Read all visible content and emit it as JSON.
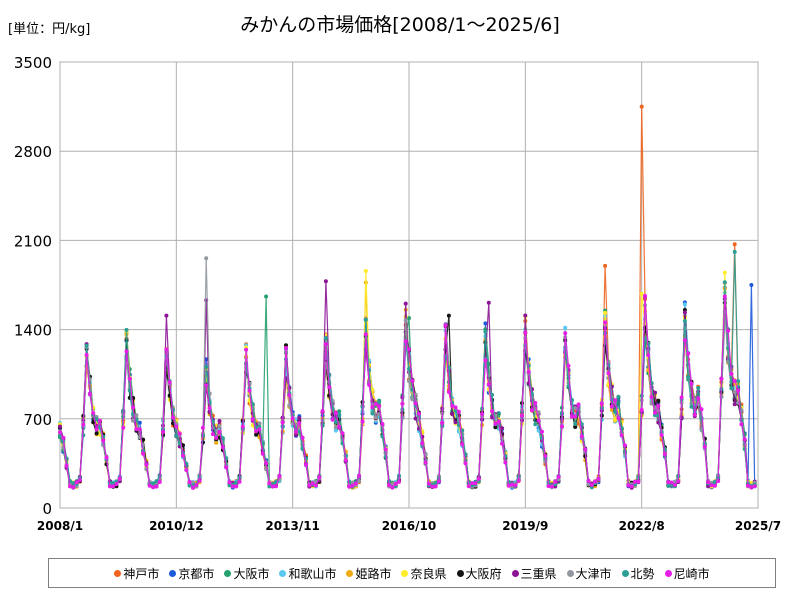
{
  "unit_label": "[単位：円/kg]",
  "chart_data": {
    "type": "line",
    "title": "みかんの市場価格[2008/1〜2025/6]",
    "xlabel": "",
    "ylabel": "",
    "x_range": [
      "2008/1",
      "2025/7"
    ],
    "ylim": [
      0,
      3500
    ],
    "y_ticks": [
      0,
      700,
      1400,
      2100,
      2800,
      3500
    ],
    "x_ticks": [
      "2008/1",
      "2010/12",
      "2013/11",
      "2016/10",
      "2019/9",
      "2022/8",
      "2025/7"
    ],
    "grid": true,
    "legend_position": "bottom",
    "seasonal_pattern_note": "",
    "base_profile": {
      "description": "",
      "season_peaks": [
        {
          "season_start": "2008/1",
          "peak": 1180
        },
        {
          "season_start": "2009/1",
          "peak": 1250
        },
        {
          "season_start": "2010/1",
          "peak": 1150
        },
        {
          "season_start": "2011/1",
          "peak": 1050
        },
        {
          "season_start": "2012/1",
          "peak": 1180
        },
        {
          "season_start": "2013/1",
          "peak": 1150
        },
        {
          "season_start": "2014/1",
          "peak": 1250
        },
        {
          "season_start": "2015/1",
          "peak": 1350
        },
        {
          "season_start": "2016/1",
          "peak": 1450
        },
        {
          "season_start": "2017/1",
          "peak": 1300
        },
        {
          "season_start": "2018/1",
          "peak": 1300
        },
        {
          "season_start": "2019/1",
          "peak": 1350
        },
        {
          "season_start": "2020/1",
          "peak": 1300
        },
        {
          "season_start": "2021/1",
          "peak": 1400
        },
        {
          "season_start": "2022/1",
          "peak": 1500
        },
        {
          "season_start": "2023/1",
          "peak": 1450
        },
        {
          "season_start": "2024/1",
          "peak": 1650
        },
        {
          "season_start": "2025/1",
          "peak": 1750
        }
      ]
    },
    "series": [
      {
        "name": "神戸市",
        "color": "#f0641e",
        "spikes": [
          {
            "date": "2022/8",
            "value": 3150
          },
          {
            "date": "2021/9",
            "value": 1900
          },
          {
            "date": "2024/12",
            "value": 2070
          }
        ]
      },
      {
        "name": "京都市",
        "color": "#1e5adc",
        "spikes": [
          {
            "date": "2008/9",
            "value": 1270
          },
          {
            "date": "2025/5",
            "value": 1750
          }
        ]
      },
      {
        "name": "大阪市",
        "color": "#23a06e",
        "spikes": [
          {
            "date": "2013/3",
            "value": 1660
          },
          {
            "date": "2016/10",
            "value": 1490
          }
        ]
      },
      {
        "name": "和歌山市",
        "color": "#5ac8f0",
        "spikes": [
          {
            "date": "2016/9",
            "value": 1340
          }
        ]
      },
      {
        "name": "姫路市",
        "color": "#f0aa14",
        "spikes": [
          {
            "date": "2015/9",
            "value": 1770
          }
        ]
      },
      {
        "name": "奈良県",
        "color": "#ffeb28",
        "spikes": [
          {
            "date": "2015/9",
            "value": 1860
          },
          {
            "date": "2022/8",
            "value": 1680
          }
        ]
      },
      {
        "name": "大阪府",
        "color": "#141414",
        "spikes": [
          {
            "date": "2017/10",
            "value": 1510
          }
        ]
      },
      {
        "name": "三重県",
        "color": "#8c1496",
        "spikes": [
          {
            "date": "2011/9",
            "value": 1630
          },
          {
            "date": "2014/9",
            "value": 1780
          },
          {
            "date": "2010/9",
            "value": 1510
          },
          {
            "date": "2018/10",
            "value": 1610
          }
        ]
      },
      {
        "name": "大津市",
        "color": "#9196a0",
        "spikes": [
          {
            "date": "2011/9",
            "value": 1960
          }
        ]
      },
      {
        "name": "北勢",
        "color": "#2da096",
        "spikes": [
          {
            "date": "2024/12",
            "value": 2010
          }
        ]
      },
      {
        "name": "尼崎市",
        "color": "#e61ee6",
        "spikes": []
      }
    ]
  }
}
